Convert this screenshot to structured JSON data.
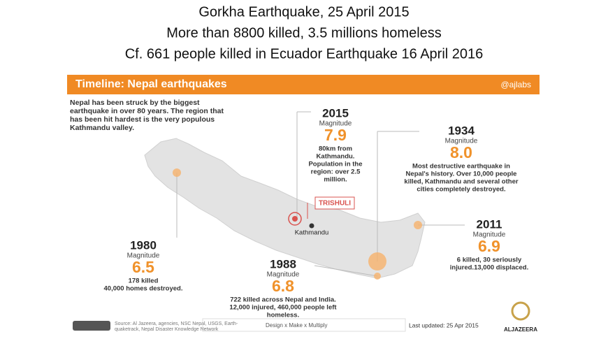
{
  "header": {
    "lines": [
      "Gorkha Earthquake, 25 April 2015",
      "More than 8800 killed, 3.5 millions homeless",
      "Cf. 661 people killed  in Ecuador Earthquake 16 April 2016"
    ]
  },
  "infographic": {
    "title": "Timeline: Nepal earthquakes",
    "handle": "@ajlabs",
    "intro": [
      "Nepal has been struck by the biggest",
      "earthquake in over 80 years. The region that",
      "has been hit hardest is the very populous",
      "Kathmandu valley."
    ],
    "events": [
      {
        "year": "2015",
        "magnitude_label": "Magnitude",
        "magnitude": "7.9",
        "description": [
          "80km from",
          "Kathmandu.",
          "Population in the",
          "region: over 2.5",
          "million."
        ]
      },
      {
        "year": "1934",
        "magnitude_label": "Magnitude",
        "magnitude": "8.0",
        "description": [
          "Most destructive earthquake in",
          "Nepal's history. Over 10,000 people",
          "killed, Kathmandu and several other",
          "cities completely destroyed."
        ]
      },
      {
        "year": "2011",
        "magnitude_label": "Magnitude",
        "magnitude": "6.9",
        "description": [
          "6 killed, 30 seriously",
          "injured.13,000 displaced."
        ]
      },
      {
        "year": "1980",
        "magnitude_label": "Magnitude",
        "magnitude": "6.5",
        "description": [
          "178 killed",
          "40,000 homes destroyed."
        ]
      },
      {
        "year": "1988",
        "magnitude_label": "Magnitude",
        "magnitude": "6.8",
        "description": [
          "722 killed across Nepal and India.",
          "12,000 injured, 460,000 people left",
          "homeless."
        ]
      }
    ],
    "map_labels": [
      "TRISHULI",
      "Kathmandu"
    ],
    "footer": {
      "source": [
        "Source: Al Jazeera, agencies, NSC Nepal, USGS, Earth-",
        "quaketrack, Nepal Disaster Knowledge Network"
      ],
      "credit": "Design x Make x Multiply",
      "updated": "Last updated: 25 Apr 2015",
      "logo": "ALJAZEERA"
    }
  }
}
